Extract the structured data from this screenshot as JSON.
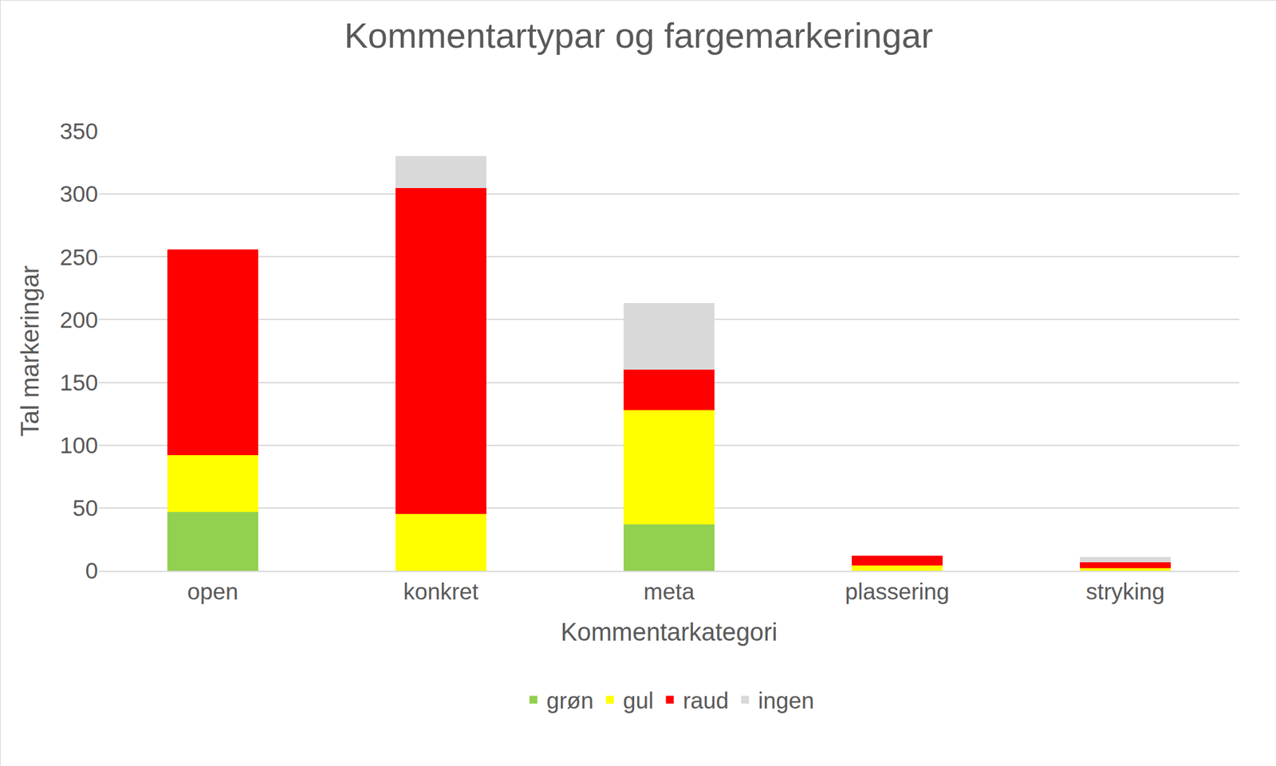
{
  "chart_data": {
    "type": "bar",
    "title": "Kommentartypar og fargemarkeringar",
    "x_label": "Kommentarkategori",
    "y_label": "Tal markeringar",
    "categories": [
      "open",
      "konkret",
      "meta",
      "plassering",
      "stryking"
    ],
    "series": [
      {
        "name": "grøn",
        "color": "#92d050",
        "values": [
          47,
          0,
          37,
          0,
          0
        ]
      },
      {
        "name": "gul",
        "color": "#ffff00",
        "values": [
          45,
          45,
          91,
          4,
          2
        ]
      },
      {
        "name": "raud",
        "color": "#ff0000",
        "values": [
          164,
          260,
          32,
          8,
          5
        ]
      },
      {
        "name": "ingen",
        "color": "#d9d9d9",
        "values": [
          0,
          25,
          53,
          0,
          4
        ]
      }
    ],
    "stacked": true,
    "ylim": [
      0,
      350
    ],
    "yticks": [
      0,
      50,
      100,
      150,
      200,
      250,
      300,
      350
    ],
    "grid": true,
    "legend": "bottom"
  }
}
